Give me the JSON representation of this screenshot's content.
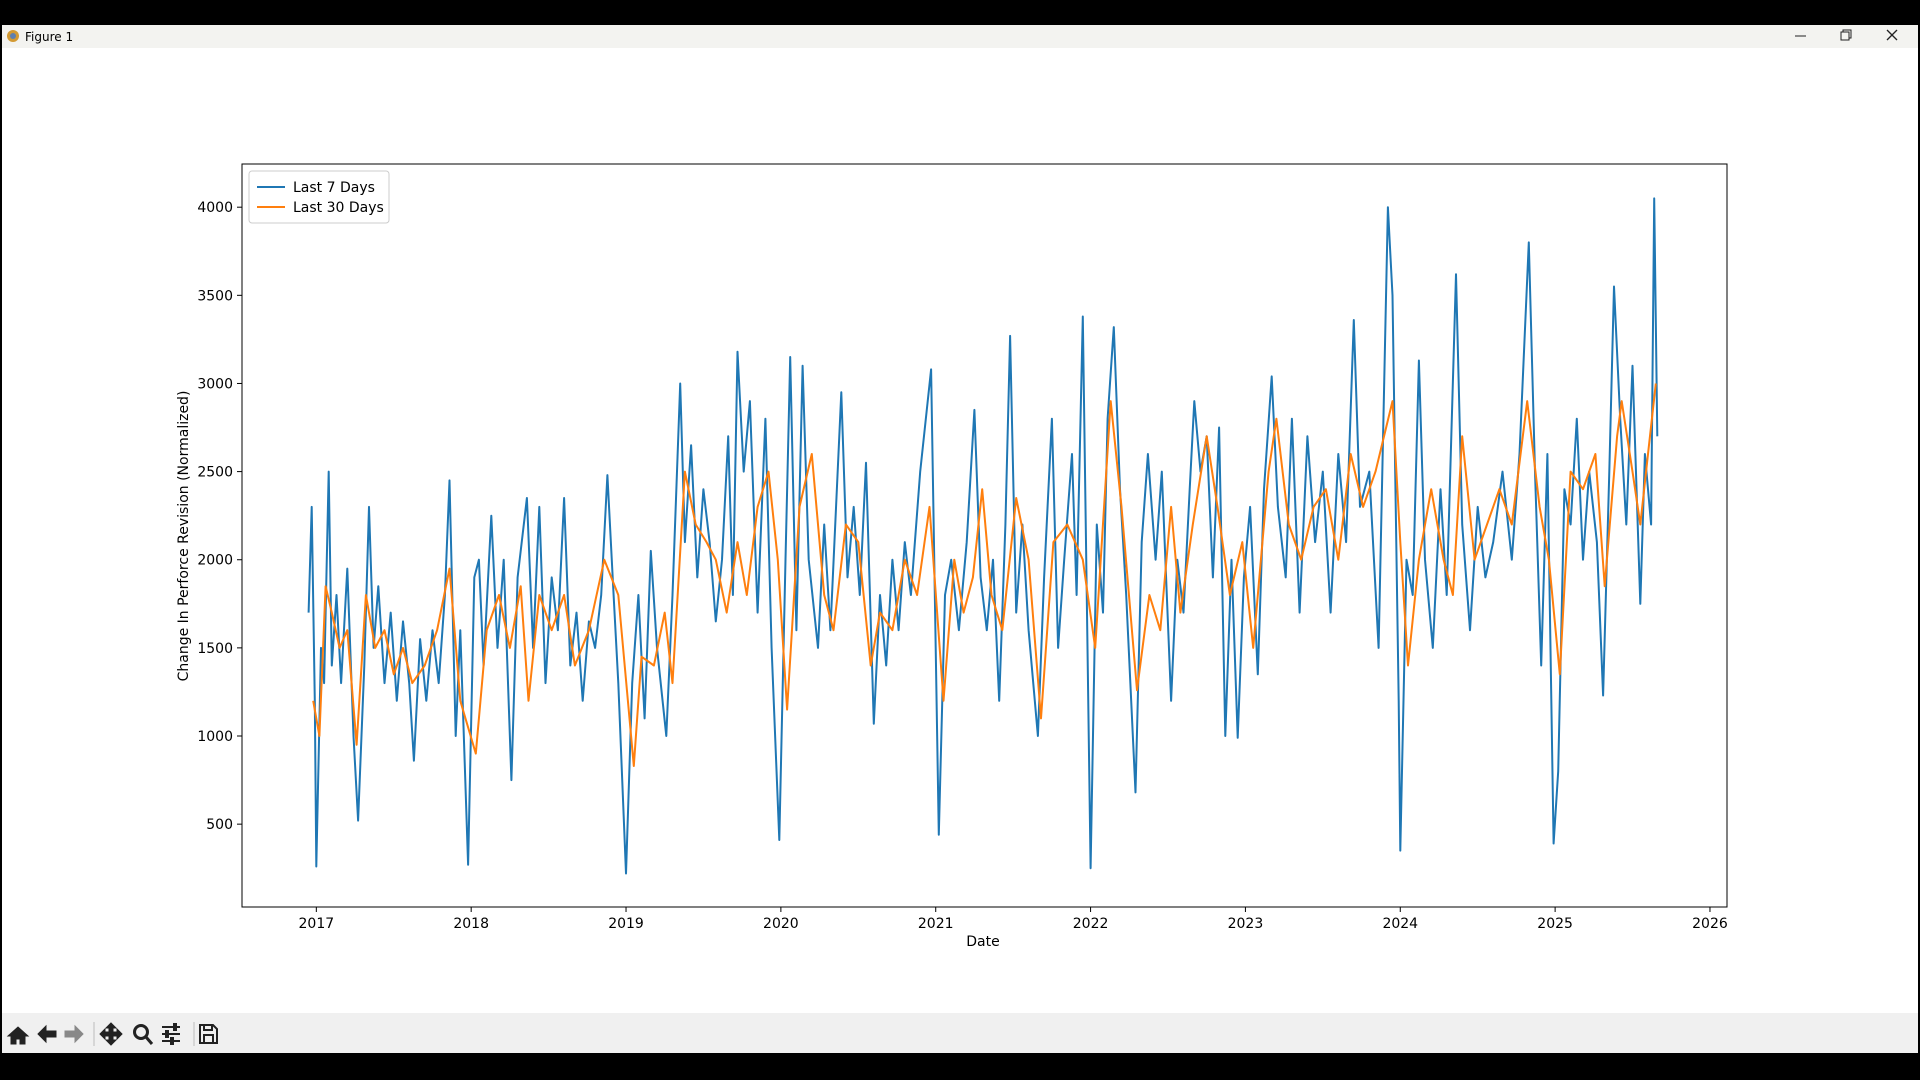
{
  "window": {
    "title": "Figure 1"
  },
  "chart_data": {
    "type": "line",
    "xlabel": "Date",
    "ylabel": "Change In Perforce Revision (Normalized)",
    "xlim": [
      2016.52,
      2026.11
    ],
    "xticks": [
      2017,
      2018,
      2019,
      2020,
      2021,
      2022,
      2023,
      2024,
      2025,
      2026
    ],
    "ylim": [
      30,
      4245
    ],
    "yticks": [
      500,
      1000,
      1500,
      2000,
      2500,
      3000,
      3500,
      4000
    ],
    "grid": false,
    "legend": "upper left",
    "series": [
      {
        "name": "Last 7 Days",
        "color": "#1f77b4",
        "x": [
          2016.95,
          2016.97,
          2016.99,
          2017.0,
          2017.03,
          2017.05,
          2017.08,
          2017.1,
          2017.13,
          2017.16,
          2017.2,
          2017.24,
          2017.27,
          2017.31,
          2017.34,
          2017.37,
          2017.4,
          2017.44,
          2017.48,
          2017.52,
          2017.56,
          2017.6,
          2017.63,
          2017.67,
          2017.71,
          2017.75,
          2017.79,
          2017.83,
          2017.86,
          2017.9,
          2017.93,
          2017.98,
          2018.02,
          2018.05,
          2018.08,
          2018.13,
          2018.17,
          2018.21,
          2018.26,
          2018.3,
          2018.36,
          2018.4,
          2018.44,
          2018.48,
          2018.52,
          2018.56,
          2018.6,
          2018.64,
          2018.68,
          2018.72,
          2018.76,
          2018.8,
          2018.84,
          2018.88,
          2018.92,
          2018.95,
          2019.0,
          2019.04,
          2019.08,
          2019.12,
          2019.16,
          2019.2,
          2019.26,
          2019.3,
          2019.35,
          2019.38,
          2019.42,
          2019.46,
          2019.5,
          2019.54,
          2019.58,
          2019.62,
          2019.66,
          2019.69,
          2019.72,
          2019.76,
          2019.8,
          2019.85,
          2019.9,
          2019.94,
          2019.99,
          2020.03,
          2020.06,
          2020.1,
          2020.14,
          2020.18,
          2020.24,
          2020.28,
          2020.32,
          2020.39,
          2020.43,
          2020.47,
          2020.51,
          2020.55,
          2020.6,
          2020.64,
          2020.68,
          2020.72,
          2020.76,
          2020.8,
          2020.84,
          2020.9,
          2020.97,
          2021.0,
          2021.02,
          2021.06,
          2021.1,
          2021.15,
          2021.2,
          2021.25,
          2021.29,
          2021.33,
          2021.37,
          2021.41,
          2021.45,
          2021.48,
          2021.52,
          2021.56,
          2021.6,
          2021.66,
          2021.7,
          2021.75,
          2021.79,
          2021.83,
          2021.88,
          2021.91,
          2021.95,
          2021.98,
          2022.0,
          2022.04,
          2022.08,
          2022.11,
          2022.15,
          2022.19,
          2022.23,
          2022.29,
          2022.33,
          2022.37,
          2022.42,
          2022.46,
          2022.52,
          2022.56,
          2022.6,
          2022.64,
          2022.67,
          2022.71,
          2022.75,
          2022.79,
          2022.83,
          2022.87,
          2022.91,
          2022.95,
          2022.99,
          2023.03,
          2023.08,
          2023.12,
          2023.17,
          2023.21,
          2023.26,
          2023.3,
          2023.35,
          2023.4,
          2023.45,
          2023.5,
          2023.55,
          2023.6,
          2023.65,
          2023.7,
          2023.74,
          2023.8,
          2023.86,
          2023.92,
          2023.95,
          2023.99,
          2024.0,
          2024.04,
          2024.08,
          2024.12,
          2024.16,
          2024.21,
          2024.26,
          2024.3,
          2024.36,
          2024.4,
          2024.45,
          2024.5,
          2024.55,
          2024.6,
          2024.66,
          2024.72,
          2024.77,
          2024.83,
          2024.87,
          2024.91,
          2024.95,
          2024.99,
          2025.02,
          2025.06,
          2025.1,
          2025.14,
          2025.18,
          2025.22,
          2025.27,
          2025.31,
          2025.35,
          2025.38,
          2025.42,
          2025.46,
          2025.5,
          2025.55,
          2025.58,
          2025.62,
          2025.64,
          2025.66
        ],
        "values": [
          1700,
          2300,
          1200,
          260,
          1500,
          1300,
          2500,
          1400,
          1800,
          1300,
          1950,
          1000,
          520,
          1400,
          2300,
          1500,
          1850,
          1300,
          1700,
          1200,
          1650,
          1300,
          860,
          1550,
          1200,
          1600,
          1300,
          1800,
          2450,
          1000,
          1600,
          270,
          1900,
          2000,
          1400,
          2250,
          1500,
          2000,
          750,
          1900,
          2350,
          1500,
          2300,
          1300,
          1900,
          1600,
          2350,
          1400,
          1700,
          1200,
          1650,
          1500,
          1800,
          2480,
          1800,
          1300,
          220,
          1300,
          1800,
          1100,
          2050,
          1500,
          1000,
          1800,
          3000,
          2100,
          2650,
          1900,
          2400,
          2100,
          1650,
          2000,
          2700,
          1800,
          3180,
          2500,
          2900,
          1700,
          2800,
          1500,
          410,
          2000,
          3150,
          1600,
          3100,
          2000,
          1500,
          2200,
          1600,
          2950,
          1900,
          2300,
          1800,
          2550,
          1070,
          1800,
          1400,
          2000,
          1600,
          2100,
          1800,
          2500,
          3080,
          1500,
          440,
          1800,
          2000,
          1600,
          2100,
          2850,
          1900,
          1600,
          2000,
          1200,
          2200,
          3270,
          1700,
          2200,
          1600,
          1000,
          1900,
          2800,
          1500,
          2000,
          2600,
          1800,
          3380,
          1500,
          250,
          2200,
          1700,
          2800,
          3320,
          2400,
          1800,
          680,
          2100,
          2600,
          2000,
          2500,
          1200,
          2000,
          1700,
          2400,
          2900,
          2500,
          2700,
          1900,
          2750,
          1000,
          2000,
          990,
          1900,
          2300,
          1350,
          2400,
          3040,
          2300,
          1900,
          2800,
          1700,
          2700,
          2100,
          2500,
          1700,
          2600,
          2100,
          3360,
          2300,
          2500,
          1500,
          4000,
          3500,
          1200,
          350,
          2000,
          1800,
          3130,
          2000,
          1500,
          2400,
          1800,
          3620,
          2200,
          1600,
          2300,
          1900,
          2100,
          2500,
          2000,
          2600,
          3800,
          2500,
          1400,
          2600,
          390,
          800,
          2400,
          2200,
          2800,
          2000,
          2500,
          2100,
          1230,
          2500,
          3550,
          2800,
          2200,
          3100,
          1750,
          2600,
          2200,
          4050,
          2700
        ]
      },
      {
        "name": "Last 30 Days",
        "color": "#ff7f0e",
        "x": [
          2016.98,
          2017.02,
          2017.06,
          2017.1,
          2017.15,
          2017.2,
          2017.26,
          2017.32,
          2017.38,
          2017.44,
          2017.5,
          2017.56,
          2017.62,
          2017.7,
          2017.78,
          2017.86,
          2017.93,
          2018.03,
          2018.1,
          2018.18,
          2018.25,
          2018.32,
          2018.37,
          2018.44,
          2018.52,
          2018.6,
          2018.67,
          2018.76,
          2018.86,
          2018.95,
          2019.05,
          2019.1,
          2019.18,
          2019.25,
          2019.3,
          2019.38,
          2019.45,
          2019.52,
          2019.58,
          2019.65,
          2019.72,
          2019.78,
          2019.85,
          2019.92,
          2019.98,
          2020.04,
          2020.12,
          2020.2,
          2020.28,
          2020.34,
          2020.42,
          2020.5,
          2020.58,
          2020.64,
          2020.72,
          2020.8,
          2020.88,
          2020.96,
          2021.05,
          2021.12,
          2021.18,
          2021.24,
          2021.3,
          2021.36,
          2021.43,
          2021.52,
          2021.6,
          2021.68,
          2021.76,
          2021.85,
          2021.95,
          2022.03,
          2022.13,
          2022.2,
          2022.3,
          2022.38,
          2022.45,
          2022.52,
          2022.58,
          2022.66,
          2022.75,
          2022.82,
          2022.9,
          2022.98,
          2023.05,
          2023.15,
          2023.2,
          2023.28,
          2023.36,
          2023.44,
          2023.52,
          2023.6,
          2023.68,
          2023.76,
          2023.84,
          2023.95,
          2024.0,
          2024.05,
          2024.12,
          2024.2,
          2024.28,
          2024.34,
          2024.4,
          2024.48,
          2024.56,
          2024.64,
          2024.72,
          2024.82,
          2024.9,
          2024.96,
          2025.03,
          2025.1,
          2025.18,
          2025.26,
          2025.32,
          2025.4,
          2025.43,
          2025.5,
          2025.55,
          2025.6,
          2025.65
        ],
        "values": [
          1200,
          1000,
          1850,
          1700,
          1500,
          1600,
          950,
          1800,
          1500,
          1600,
          1350,
          1500,
          1300,
          1400,
          1600,
          1950,
          1200,
          900,
          1600,
          1800,
          1500,
          1850,
          1200,
          1800,
          1600,
          1800,
          1400,
          1600,
          2000,
          1800,
          830,
          1450,
          1400,
          1700,
          1300,
          2500,
          2200,
          2100,
          2000,
          1700,
          2100,
          1800,
          2300,
          2500,
          2000,
          1150,
          2300,
          2600,
          1800,
          1600,
          2200,
          2100,
          1400,
          1700,
          1600,
          2000,
          1800,
          2300,
          1200,
          2000,
          1700,
          1900,
          2400,
          1800,
          1600,
          2350,
          2000,
          1100,
          2100,
          2200,
          2000,
          1500,
          2900,
          2300,
          1260,
          1800,
          1600,
          2300,
          1700,
          2200,
          2700,
          2300,
          1800,
          2100,
          1500,
          2500,
          2800,
          2200,
          2000,
          2300,
          2400,
          2000,
          2600,
          2300,
          2500,
          2900,
          2100,
          1400,
          2000,
          2400,
          2000,
          1800,
          2700,
          2000,
          2200,
          2400,
          2200,
          2900,
          2300,
          2000,
          1350,
          2500,
          2400,
          2600,
          1850,
          2700,
          2900,
          2500,
          2200,
          2600,
          3000
        ]
      }
    ]
  }
}
